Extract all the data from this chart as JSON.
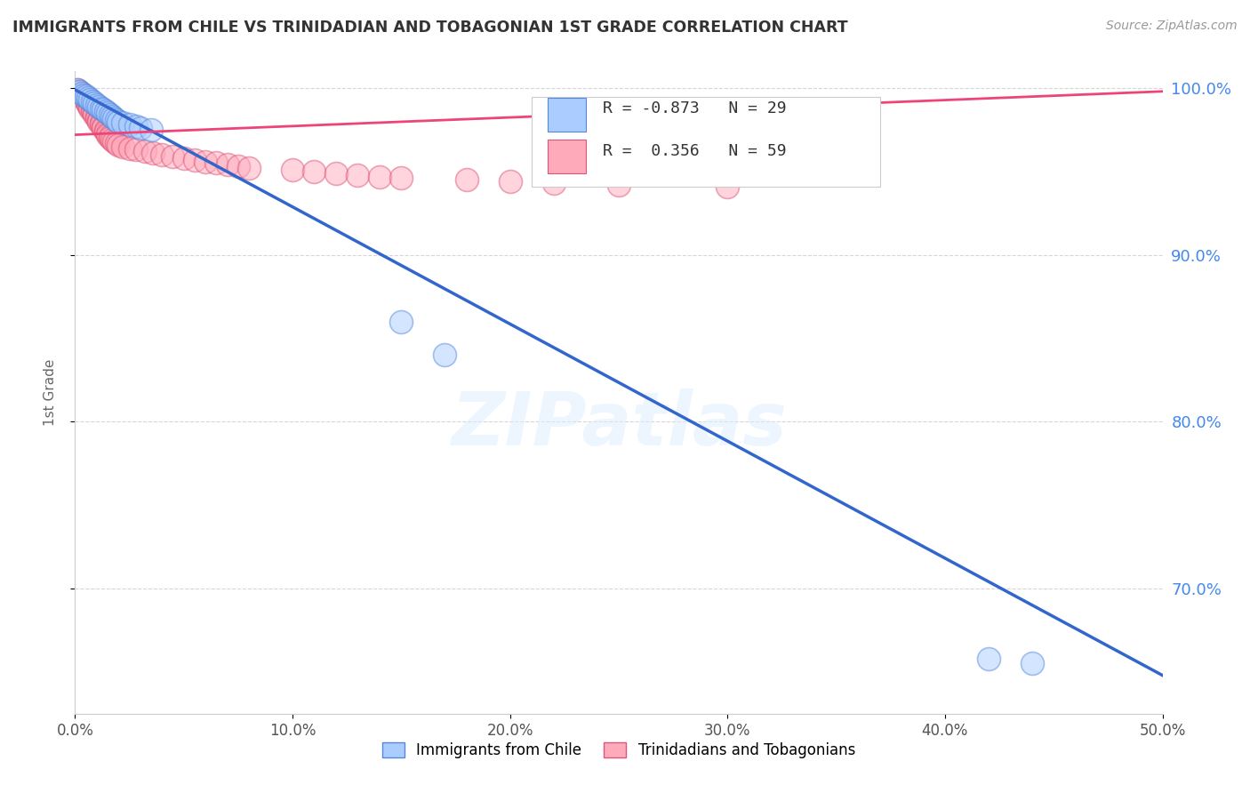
{
  "title": "IMMIGRANTS FROM CHILE VS TRINIDADIAN AND TOBAGONIAN 1ST GRADE CORRELATION CHART",
  "source": "Source: ZipAtlas.com",
  "ylabel": "1st Grade",
  "xlim": [
    0.0,
    0.5
  ],
  "ylim": [
    0.625,
    1.01
  ],
  "xticks": [
    0.0,
    0.1,
    0.2,
    0.3,
    0.4,
    0.5
  ],
  "xticklabels": [
    "0.0%",
    "10.0%",
    "20.0%",
    "30.0%",
    "40.0%",
    "50.0%"
  ],
  "yticks_right": [
    0.7,
    0.8,
    0.9,
    1.0
  ],
  "ytick_right_labels": [
    "70.0%",
    "80.0%",
    "90.0%",
    "100.0%"
  ],
  "grid_color": "#cccccc",
  "background_color": "#ffffff",
  "chile_color": "#aaccff",
  "chile_edge_color": "#5588dd",
  "tnt_color": "#ffaabb",
  "tnt_edge_color": "#dd5577",
  "chile_R": -0.873,
  "chile_N": 29,
  "tnt_R": 0.356,
  "tnt_N": 59,
  "chile_line_color": "#3366cc",
  "tnt_line_color": "#ee4477",
  "legend_chile_label": "Immigrants from Chile",
  "legend_tnt_label": "Trinidadians and Tobagonians",
  "watermark": "ZIPatlas",
  "chile_trend_x0": 0.0,
  "chile_trend_y0": 0.999,
  "chile_trend_x1": 0.5,
  "chile_trend_y1": 0.648,
  "tnt_trend_x0": 0.0,
  "tnt_trend_y0": 0.972,
  "tnt_trend_x1": 0.5,
  "tnt_trend_y1": 0.998,
  "chile_points_x": [
    0.001,
    0.002,
    0.003,
    0.004,
    0.005,
    0.006,
    0.007,
    0.008,
    0.009,
    0.01,
    0.011,
    0.012,
    0.013,
    0.014,
    0.015,
    0.016,
    0.017,
    0.018,
    0.019,
    0.02,
    0.022,
    0.025,
    0.028,
    0.03,
    0.035,
    0.15,
    0.17,
    0.42,
    0.44
  ],
  "chile_points_y": [
    0.999,
    0.998,
    0.997,
    0.996,
    0.995,
    0.994,
    0.993,
    0.992,
    0.991,
    0.99,
    0.989,
    0.988,
    0.987,
    0.986,
    0.985,
    0.984,
    0.983,
    0.982,
    0.981,
    0.98,
    0.979,
    0.978,
    0.977,
    0.976,
    0.975,
    0.86,
    0.84,
    0.658,
    0.655
  ],
  "tnt_points_x": [
    0.001,
    0.002,
    0.003,
    0.003,
    0.004,
    0.004,
    0.005,
    0.005,
    0.006,
    0.006,
    0.007,
    0.007,
    0.008,
    0.008,
    0.009,
    0.009,
    0.01,
    0.01,
    0.011,
    0.011,
    0.012,
    0.012,
    0.013,
    0.013,
    0.014,
    0.014,
    0.015,
    0.015,
    0.016,
    0.016,
    0.017,
    0.018,
    0.019,
    0.02,
    0.022,
    0.025,
    0.028,
    0.032,
    0.036,
    0.04,
    0.045,
    0.05,
    0.055,
    0.06,
    0.065,
    0.07,
    0.075,
    0.08,
    0.1,
    0.11,
    0.12,
    0.13,
    0.14,
    0.15,
    0.18,
    0.2,
    0.22,
    0.25,
    0.3
  ],
  "tnt_points_y": [
    0.999,
    0.998,
    0.997,
    0.996,
    0.995,
    0.994,
    0.993,
    0.992,
    0.991,
    0.99,
    0.989,
    0.988,
    0.987,
    0.986,
    0.985,
    0.984,
    0.983,
    0.982,
    0.981,
    0.98,
    0.979,
    0.978,
    0.977,
    0.976,
    0.975,
    0.974,
    0.973,
    0.972,
    0.971,
    0.97,
    0.969,
    0.968,
    0.967,
    0.966,
    0.965,
    0.964,
    0.963,
    0.962,
    0.961,
    0.96,
    0.959,
    0.958,
    0.957,
    0.956,
    0.955,
    0.954,
    0.953,
    0.952,
    0.951,
    0.95,
    0.949,
    0.948,
    0.947,
    0.946,
    0.945,
    0.944,
    0.943,
    0.942,
    0.941
  ]
}
